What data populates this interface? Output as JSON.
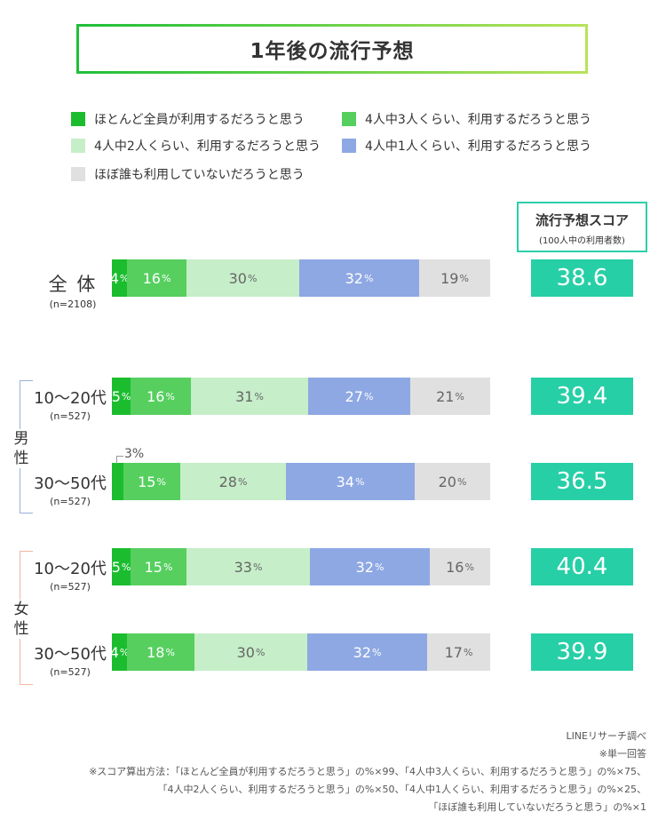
{
  "title": "1年後の流行予想",
  "colors": {
    "all": "#1bbd2f",
    "three": "#56cf5f",
    "two": "#c6eec9",
    "one": "#8ea8e3",
    "none": "#e0e0e0",
    "score": "#27cfa6"
  },
  "legend": [
    {
      "key": "all",
      "label": "ほとんど全員が利用するだろうと思う"
    },
    {
      "key": "three",
      "label": "4人中3人くらい、利用するだろうと思う"
    },
    {
      "key": "two",
      "label": "4人中2人くらい、利用するだろうと思う"
    },
    {
      "key": "one",
      "label": "4人中1人くらい、利用するだろうと思う"
    },
    {
      "key": "none",
      "label": "ほぼ誰も利用していないだろうと思う"
    }
  ],
  "score_header": {
    "title": "流行予想スコア",
    "subtitle": "(100人中の利用者数)"
  },
  "groups": {
    "male": "男\n性",
    "female": "女\n性"
  },
  "pct_unit": "%",
  "callout": "3%",
  "chart_data": {
    "type": "bar",
    "orientation": "horizontal",
    "stacked": true,
    "title": "1年後の流行予想",
    "series_names": [
      "ほとんど全員が利用するだろうと思う",
      "4人中3人くらい、利用するだろうと思う",
      "4人中2人くらい、利用するだろうと思う",
      "4人中1人くらい、利用するだろうと思う",
      "ほぼ誰も利用していないだろうと思う"
    ],
    "rows": [
      {
        "label": "全 体",
        "n": "(n=2108)",
        "values": [
          4,
          16,
          30,
          32,
          19
        ],
        "score": "38.6"
      },
      {
        "label": "10〜20代",
        "n": "(n=527)",
        "values": [
          5,
          16,
          31,
          27,
          21
        ],
        "score": "39.4"
      },
      {
        "label": "30〜50代",
        "n": "(n=527)",
        "values": [
          3,
          15,
          28,
          34,
          20
        ],
        "score": "36.5"
      },
      {
        "label": "10〜20代",
        "n": "(n=527)",
        "values": [
          5,
          15,
          33,
          32,
          16
        ],
        "score": "40.4"
      },
      {
        "label": "30〜50代",
        "n": "(n=527)",
        "values": [
          4,
          18,
          30,
          32,
          17
        ],
        "score": "39.9"
      }
    ]
  },
  "footer": [
    "LINEリサーチ調べ",
    "※単一回答",
    "※スコア算出方法：「ほとんど全員が利用するだろうと思う」の%×99、「4人中3人くらい、利用するだろうと思う」の%×75、",
    "「4人中2人くらい、利用するだろうと思う」の%×50、「4人中1人くらい、利用するだろうと思う」の%×25、",
    "「ほぼ誰も利用していないだろうと思う」の%×1"
  ]
}
